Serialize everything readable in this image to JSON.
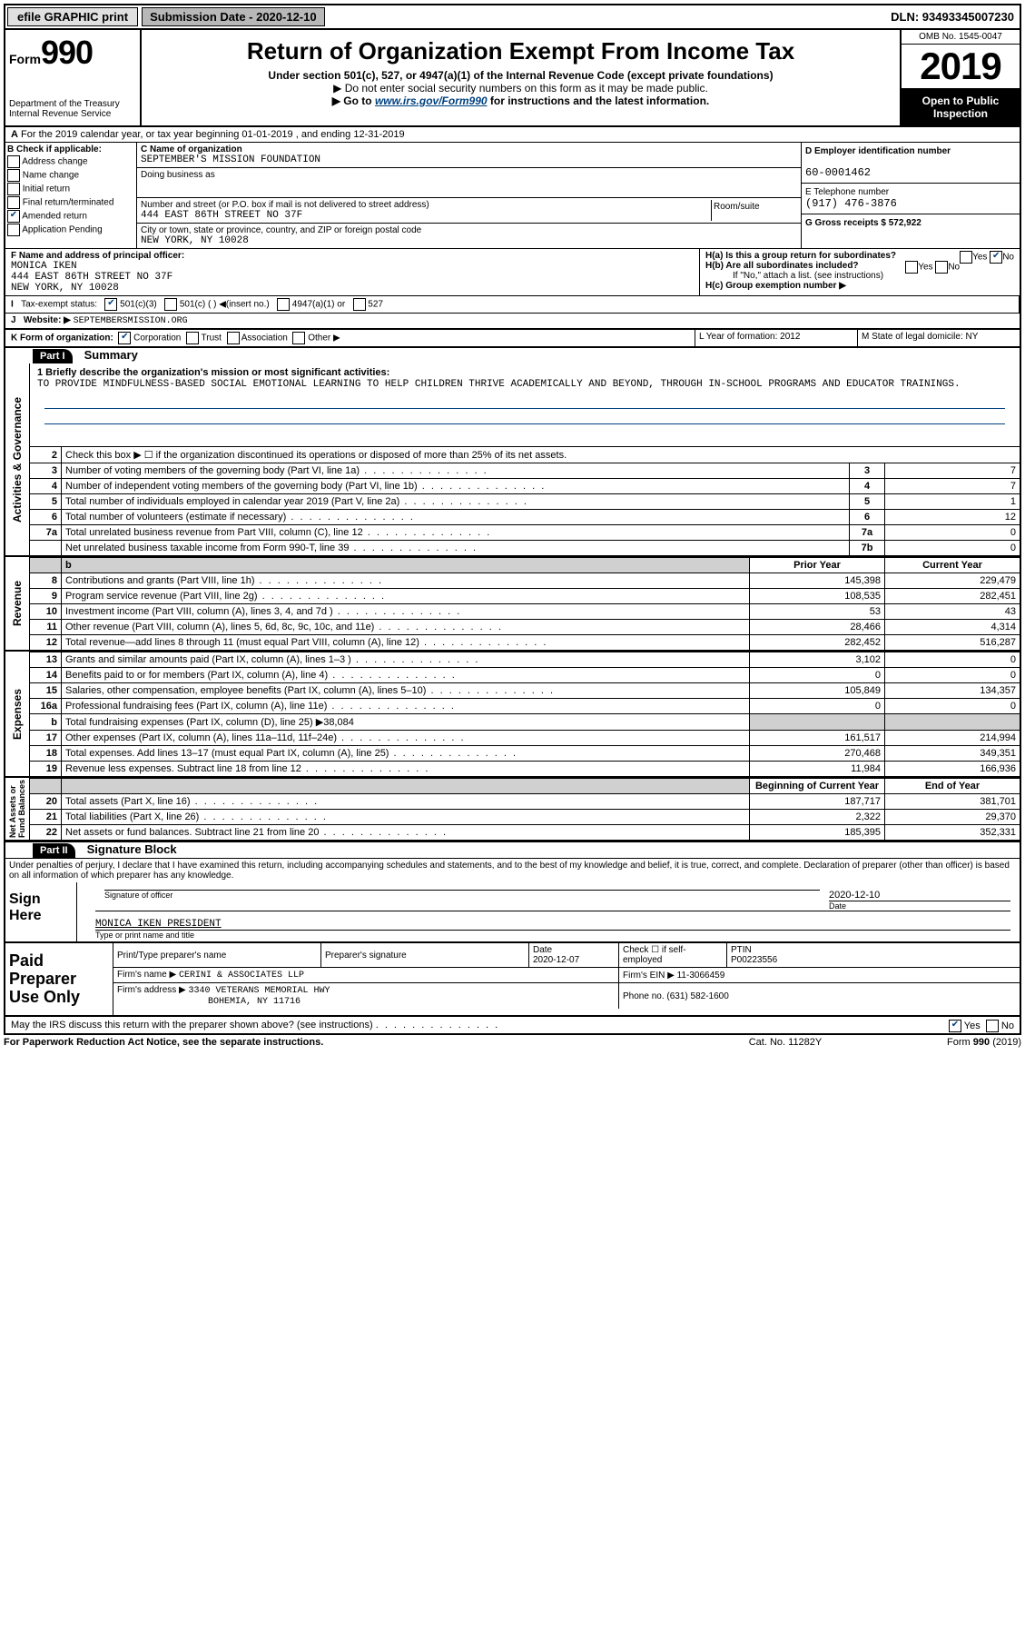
{
  "topbar": {
    "efile": "efile GRAPHIC print",
    "subdate_label": "Submission Date - 2020-12-10",
    "dln": "DLN: 93493345007230"
  },
  "header": {
    "form_label": "Form",
    "form_num": "990",
    "dept": "Department of the Treasury Internal Revenue Service",
    "title": "Return of Organization Exempt From Income Tax",
    "sub": "Under section 501(c), 527, or 4947(a)(1) of the Internal Revenue Code (except private foundations)",
    "note1": "▶ Do not enter social security numbers on this form as it may be made public.",
    "note2_pre": "▶ Go to ",
    "note2_link": "www.irs.gov/Form990",
    "note2_post": " for instructions and the latest information.",
    "omb": "OMB No. 1545-0047",
    "year": "2019",
    "open": "Open to Public Inspection"
  },
  "line_a": "For the 2019 calendar year, or tax year beginning 01-01-2019   , and ending 12-31-2019",
  "box_b": {
    "label": "B Check if applicable:",
    "addr": "Address change",
    "name": "Name change",
    "init": "Initial return",
    "final": "Final return/terminated",
    "amend": "Amended return",
    "app": "Application Pending"
  },
  "box_c": {
    "name_lbl": "C Name of organization",
    "name": "SEPTEMBER'S MISSION FOUNDATION",
    "dba_lbl": "Doing business as",
    "addr_lbl": "Number and street (or P.O. box if mail is not delivered to street address)",
    "addr": "444 EAST 86TH STREET NO 37F",
    "room_lbl": "Room/suite",
    "city_lbl": "City or town, state or province, country, and ZIP or foreign postal code",
    "city": "NEW YORK, NY  10028"
  },
  "box_d": {
    "ein_lbl": "D Employer identification number",
    "ein": "60-0001462",
    "tel_lbl": "E Telephone number",
    "tel": "(917) 476-3876",
    "gross_lbl": "G Gross receipts $ 572,922"
  },
  "box_f": {
    "lbl": "F  Name and address of principal officer:",
    "name": "MONICA IKEN",
    "addr1": "444 EAST 86TH STREET NO 37F",
    "addr2": "NEW YORK, NY  10028"
  },
  "box_h": {
    "a": "H(a)  Is this a group return for subordinates?",
    "b": "H(b)  Are all subordinates included?",
    "note": "If \"No,\" attach a list. (see instructions)",
    "c": "H(c)  Group exemption number ▶"
  },
  "tax_exempt": "Tax-exempt status:",
  "website_lbl": "Website: ▶",
  "website": "SEPTEMBERSMISSION.ORG",
  "form_org": "K Form of organization:",
  "year_form_lbl": "L Year of formation: 2012",
  "state_lbl": "M State of legal domicile: NY",
  "parts": {
    "p1": "Part I",
    "p1_t": "Summary",
    "p2": "Part II",
    "p2_t": "Signature Block"
  },
  "mission": {
    "q": "1  Briefly describe the organization's mission or most significant activities:",
    "txt": "TO PROVIDE MINDFULNESS-BASED SOCIAL EMOTIONAL LEARNING TO HELP CHILDREN THRIVE ACADEMICALLY AND BEYOND, THROUGH IN-SCHOOL PROGRAMS AND EDUCATOR TRAININGS."
  },
  "gov_rows": [
    {
      "n": "2",
      "d": "Check this box ▶ ☐  if the organization discontinued its operations or disposed of more than 25% of its net assets."
    },
    {
      "n": "3",
      "d": "Number of voting members of the governing body (Part VI, line 1a)",
      "box": "3",
      "v": "7"
    },
    {
      "n": "4",
      "d": "Number of independent voting members of the governing body (Part VI, line 1b)",
      "box": "4",
      "v": "7"
    },
    {
      "n": "5",
      "d": "Total number of individuals employed in calendar year 2019 (Part V, line 2a)",
      "box": "5",
      "v": "1"
    },
    {
      "n": "6",
      "d": "Total number of volunteers (estimate if necessary)",
      "box": "6",
      "v": "12"
    },
    {
      "n": "7a",
      "d": "Total unrelated business revenue from Part VIII, column (C), line 12",
      "box": "7a",
      "v": "0"
    },
    {
      "n": "",
      "d": "Net unrelated business taxable income from Form 990-T, line 39",
      "box": "7b",
      "v": "0"
    }
  ],
  "rev_hdr": {
    "py": "Prior Year",
    "cy": "Current Year"
  },
  "rev_rows": [
    {
      "n": "8",
      "d": "Contributions and grants (Part VIII, line 1h)",
      "py": "145,398",
      "cy": "229,479"
    },
    {
      "n": "9",
      "d": "Program service revenue (Part VIII, line 2g)",
      "py": "108,535",
      "cy": "282,451"
    },
    {
      "n": "10",
      "d": "Investment income (Part VIII, column (A), lines 3, 4, and 7d )",
      "py": "53",
      "cy": "43"
    },
    {
      "n": "11",
      "d": "Other revenue (Part VIII, column (A), lines 5, 6d, 8c, 9c, 10c, and 11e)",
      "py": "28,466",
      "cy": "4,314"
    },
    {
      "n": "12",
      "d": "Total revenue—add lines 8 through 11 (must equal Part VIII, column (A), line 12)",
      "py": "282,452",
      "cy": "516,287"
    }
  ],
  "exp_rows": [
    {
      "n": "13",
      "d": "Grants and similar amounts paid (Part IX, column (A), lines 1–3 )",
      "py": "3,102",
      "cy": "0"
    },
    {
      "n": "14",
      "d": "Benefits paid to or for members (Part IX, column (A), line 4)",
      "py": "0",
      "cy": "0"
    },
    {
      "n": "15",
      "d": "Salaries, other compensation, employee benefits (Part IX, column (A), lines 5–10)",
      "py": "105,849",
      "cy": "134,357"
    },
    {
      "n": "16a",
      "d": "Professional fundraising fees (Part IX, column (A), line 11e)",
      "py": "0",
      "cy": "0"
    },
    {
      "n": "b",
      "d": "Total fundraising expenses (Part IX, column (D), line 25) ▶38,084",
      "gray": true
    },
    {
      "n": "17",
      "d": "Other expenses (Part IX, column (A), lines 11a–11d, 11f–24e)",
      "py": "161,517",
      "cy": "214,994"
    },
    {
      "n": "18",
      "d": "Total expenses. Add lines 13–17 (must equal Part IX, column (A), line 25)",
      "py": "270,468",
      "cy": "349,351"
    },
    {
      "n": "19",
      "d": "Revenue less expenses. Subtract line 18 from line 12",
      "py": "11,984",
      "cy": "166,936"
    }
  ],
  "na_hdr": {
    "py": "Beginning of Current Year",
    "cy": "End of Year"
  },
  "na_rows": [
    {
      "n": "20",
      "d": "Total assets (Part X, line 16)",
      "py": "187,717",
      "cy": "381,701"
    },
    {
      "n": "21",
      "d": "Total liabilities (Part X, line 26)",
      "py": "2,322",
      "cy": "29,370"
    },
    {
      "n": "22",
      "d": "Net assets or fund balances. Subtract line 21 from line 20",
      "py": "185,395",
      "cy": "352,331"
    }
  ],
  "sig": {
    "decl": "Under penalties of perjury, I declare that I have examined this return, including accompanying schedules and statements, and to the best of my knowledge and belief, it is true, correct, and complete. Declaration of preparer (other than officer) is based on all information of which preparer has any knowledge.",
    "here": "Sign Here",
    "sig_lbl": "Signature of officer",
    "date_lbl": "Date",
    "date": "2020-12-10",
    "name": "MONICA IKEN  PRESIDENT",
    "name_lbl": "Type or print name and title"
  },
  "prep": {
    "title": "Paid Preparer Use Only",
    "pname_lbl": "Print/Type preparer's name",
    "psig_lbl": "Preparer's signature",
    "pdate_lbl": "Date",
    "pdate": "2020-12-07",
    "check_lbl": "Check ☐ if self-employed",
    "ptin_lbl": "PTIN",
    "ptin": "P00223556",
    "firm_lbl": "Firm's name   ▶",
    "firm": "CERINI & ASSOCIATES LLP",
    "ein_lbl": "Firm's EIN ▶",
    "ein": "11-3066459",
    "addr_lbl": "Firm's address ▶",
    "addr1": "3340 VETERANS MEMORIAL HWY",
    "addr2": "BOHEMIA, NY  11716",
    "phone_lbl": "Phone no.",
    "phone": "(631) 582-1600",
    "discuss": "May the IRS discuss this return with the preparer shown above? (see instructions)"
  },
  "footer": {
    "l": "For Paperwork Reduction Act Notice, see the separate instructions.",
    "m": "Cat. No. 11282Y",
    "r": "Form 990 (2019)"
  }
}
